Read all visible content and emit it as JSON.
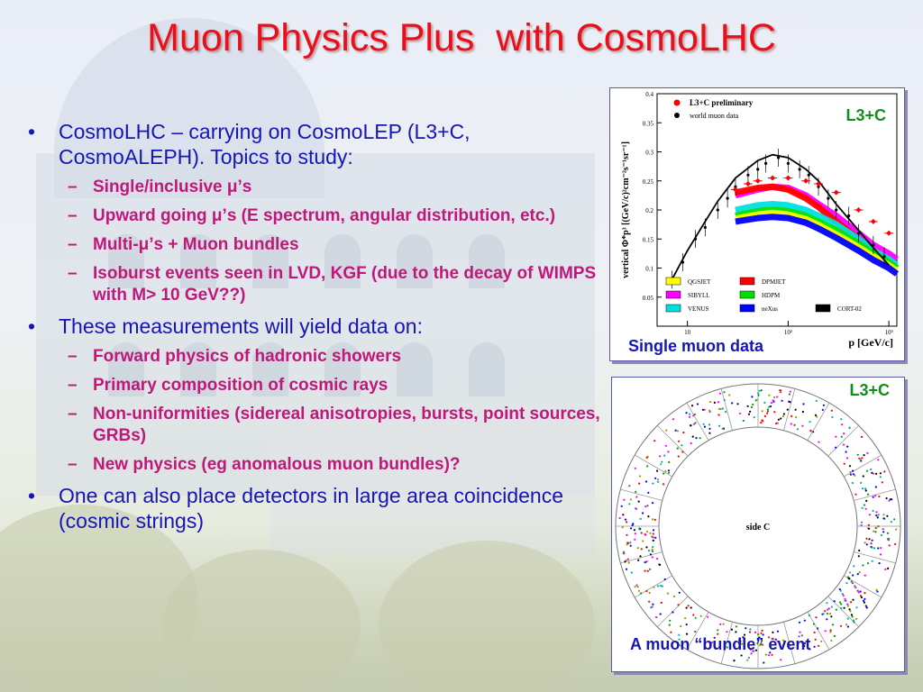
{
  "title": "Muon Physics Plus  with CosmoLHC",
  "bullets": [
    {
      "text": "CosmoLHC – carrying on CosmoLEP (L3+C, CosmoALEPH). Topics to study:",
      "sub": [
        "Single/inclusive μ’s",
        "Upward going μ’s (E spectrum, angular distribution, etc.)",
        "Multi-μ’s + Muon bundles",
        "Isoburst events seen in LVD, KGF (due to the decay of WIMPS with M> 10 GeV??)"
      ]
    },
    {
      "text": "These measurements will yield data on:",
      "sub": [
        "Forward physics of hadronic showers",
        "Primary composition of cosmic rays",
        "Non-uniformities (sidereal anisotropies, bursts, point sources, GRBs)",
        "New physics (eg anomalous muon bundles)?"
      ]
    },
    {
      "text": "One can also place detectors in large area coincidence (cosmic strings)",
      "sub": []
    }
  ],
  "figure_top": {
    "tag": "L3+C",
    "caption": "Single muon data",
    "legend_top": [
      "L3+C preliminary",
      "world muon data"
    ],
    "y_label": "vertical Φ*p³ [(GeV/c)²cm⁻²s⁻¹sr⁻¹]",
    "x_label": "p [GeV/c]",
    "y_ticks": [
      "0.4",
      "0.35",
      "0.3",
      "0.25",
      "0.2",
      "0.15",
      "0.1",
      "0.05"
    ],
    "x_ticks": [
      "10",
      "10²",
      "10³"
    ],
    "models": [
      {
        "name": "QGSJET",
        "color": "#ffff00"
      },
      {
        "name": "DPMJET",
        "color": "#ff0000"
      },
      {
        "name": "SIBYLL",
        "color": "#ff00ff"
      },
      {
        "name": "HDPM",
        "color": "#00e000"
      },
      {
        "name": "VENUS",
        "color": "#00e0e0"
      },
      {
        "name": "neXus",
        "color": "#0000ff"
      },
      {
        "name": "CORT-02",
        "color": "#000000"
      }
    ]
  },
  "figure_bottom": {
    "tag": "L3+C",
    "caption": "A muon “bundle” event",
    "center_label": "side C"
  },
  "chart_data": {
    "type": "line",
    "title": "",
    "xlabel": "p [GeV/c]",
    "ylabel": "vertical Φ*p³ [(GeV/c)²cm⁻²s⁻¹sr⁻¹]",
    "xscale": "log",
    "xlim": [
      5,
      1200
    ],
    "ylim": [
      0,
      0.4
    ],
    "legend": [
      "L3+C preliminary",
      "world muon data",
      "QGSJET",
      "DPMJET",
      "SIBYLL",
      "HDPM",
      "VENUS",
      "neXus",
      "CORT-02"
    ],
    "series": [
      {
        "name": "CORT-02",
        "x": [
          7,
          10,
          15,
          20,
          30,
          50,
          70,
          100,
          150,
          200,
          300,
          500,
          700,
          1000
        ],
        "y": [
          0.08,
          0.13,
          0.18,
          0.215,
          0.255,
          0.285,
          0.295,
          0.29,
          0.27,
          0.25,
          0.21,
          0.165,
          0.135,
          0.105
        ]
      },
      {
        "name": "L3+C preliminary",
        "x": [
          30,
          40,
          50,
          70,
          100,
          150,
          200,
          300,
          500,
          700,
          1000
        ],
        "y": [
          0.235,
          0.245,
          0.25,
          0.255,
          0.255,
          0.25,
          0.245,
          0.23,
          0.2,
          0.18,
          0.16
        ]
      },
      {
        "name": "SIBYLL",
        "x": [
          30,
          50,
          70,
          100,
          150,
          200,
          300,
          500,
          700,
          1000,
          1200
        ],
        "y": [
          0.225,
          0.235,
          0.24,
          0.238,
          0.225,
          0.21,
          0.19,
          0.16,
          0.14,
          0.125,
          0.115
        ]
      },
      {
        "name": "DPMJET",
        "x": [
          30,
          50,
          70,
          100,
          150,
          200,
          300,
          500,
          700,
          1000,
          1200
        ],
        "y": [
          0.23,
          0.238,
          0.24,
          0.235,
          0.22,
          0.205,
          0.18,
          0.15,
          0.13,
          0.11,
          0.1
        ]
      },
      {
        "name": "VENUS",
        "x": [
          30,
          50,
          70,
          100,
          150,
          200,
          300,
          500,
          700,
          1000,
          1200
        ],
        "y": [
          0.2,
          0.208,
          0.21,
          0.208,
          0.2,
          0.19,
          0.175,
          0.15,
          0.13,
          0.115,
          0.105
        ]
      },
      {
        "name": "HDPM",
        "x": [
          30,
          50,
          70,
          100,
          150,
          200,
          300,
          500,
          700,
          1000,
          1200
        ],
        "y": [
          0.19,
          0.198,
          0.2,
          0.198,
          0.19,
          0.18,
          0.165,
          0.142,
          0.125,
          0.11,
          0.1
        ]
      },
      {
        "name": "QGSJET",
        "x": [
          30,
          50,
          70,
          100,
          150,
          200,
          300,
          500,
          700,
          1000,
          1200
        ],
        "y": [
          0.185,
          0.192,
          0.195,
          0.192,
          0.184,
          0.174,
          0.158,
          0.136,
          0.12,
          0.105,
          0.095
        ]
      },
      {
        "name": "neXus",
        "x": [
          30,
          50,
          70,
          100,
          150,
          200,
          300,
          500,
          700,
          1000,
          1200
        ],
        "y": [
          0.18,
          0.186,
          0.188,
          0.186,
          0.178,
          0.168,
          0.152,
          0.13,
          0.114,
          0.1,
          0.09
        ]
      },
      {
        "name": "world muon data",
        "x": [
          7,
          9,
          12,
          15,
          20,
          25,
          30,
          40,
          50,
          60,
          80,
          100,
          130,
          160,
          200,
          250,
          300,
          400,
          500,
          700,
          900
        ],
        "y": [
          0.08,
          0.11,
          0.15,
          0.17,
          0.2,
          0.22,
          0.24,
          0.26,
          0.27,
          0.28,
          0.29,
          0.28,
          0.27,
          0.26,
          0.24,
          0.22,
          0.2,
          0.19,
          0.16,
          0.14,
          0.12
        ]
      }
    ]
  }
}
